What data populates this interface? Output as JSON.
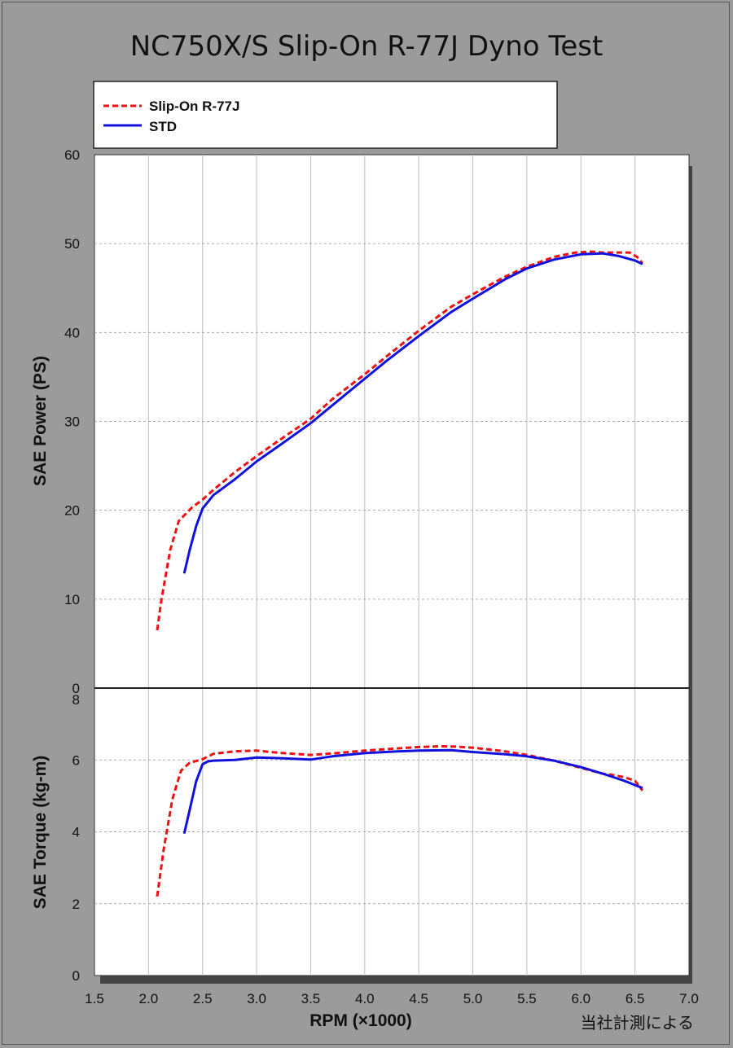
{
  "title": "NC750X/S Slip-On R-77J Dyno Test",
  "note": "当社計測による",
  "colors": {
    "background": "#9b9b9b",
    "plot": "#ffffff",
    "shadow": "#444444",
    "slipon": "#ee1111",
    "std": "#1111dd"
  },
  "legend": [
    {
      "label": "Slip-On R-77J",
      "style": "dashed",
      "color": "#ee1111"
    },
    {
      "label": "STD",
      "style": "solid",
      "color": "#1111dd"
    }
  ],
  "chart_data": [
    {
      "type": "line",
      "ylabel": "SAE Power (PS)",
      "xlim": [
        1.5,
        7.0
      ],
      "ylim": [
        0,
        60
      ],
      "yticks": [
        0,
        10,
        20,
        30,
        40,
        50,
        60
      ],
      "grid": true,
      "series": [
        {
          "name": "Slip-On R-77J",
          "x": [
            2.08,
            2.12,
            2.2,
            2.28,
            2.4,
            2.5,
            2.6,
            2.8,
            3.0,
            3.2,
            3.5,
            3.7,
            4.0,
            4.2,
            4.5,
            4.8,
            5.0,
            5.3,
            5.5,
            5.75,
            5.95,
            6.1,
            6.2,
            6.3,
            6.45,
            6.52,
            6.57
          ],
          "y": [
            6.5,
            10,
            15.5,
            18.8,
            20.3,
            21.2,
            22.3,
            24.3,
            26.1,
            27.8,
            30.3,
            32.5,
            35.3,
            37.3,
            40.2,
            42.9,
            44.3,
            46.3,
            47.4,
            48.5,
            49.0,
            49.1,
            49.0,
            49.0,
            49.0,
            48.5,
            47.8
          ]
        },
        {
          "name": "STD",
          "x": [
            2.33,
            2.38,
            2.44,
            2.5,
            2.6,
            2.8,
            3.0,
            3.2,
            3.5,
            3.7,
            4.0,
            4.2,
            4.5,
            4.8,
            5.0,
            5.3,
            5.5,
            5.75,
            6.0,
            6.2,
            6.35,
            6.5,
            6.57
          ],
          "y": [
            12.9,
            15.5,
            18.2,
            20.2,
            21.7,
            23.5,
            25.5,
            27.2,
            29.8,
            31.8,
            34.8,
            36.8,
            39.6,
            42.3,
            43.8,
            46.0,
            47.2,
            48.2,
            48.8,
            48.9,
            48.6,
            48.1,
            47.7
          ]
        }
      ]
    },
    {
      "type": "line",
      "ylabel": "SAE Torque (kg-m)",
      "xlabel": "RPM (×1000)",
      "xlim": [
        1.5,
        7.0
      ],
      "xticks": [
        "1.5",
        "2.0",
        "2.5",
        "3.0",
        "3.5",
        "4.0",
        "4.5",
        "5.0",
        "5.5",
        "6.0",
        "6.5",
        "7.0"
      ],
      "ylim": [
        0,
        8
      ],
      "yticks": [
        0,
        2,
        4,
        6,
        8
      ],
      "grid": true,
      "series": [
        {
          "name": "Slip-On R-77J",
          "x": [
            2.08,
            2.14,
            2.22,
            2.3,
            2.38,
            2.5,
            2.6,
            2.8,
            3.0,
            3.2,
            3.5,
            3.7,
            4.0,
            4.3,
            4.5,
            4.7,
            4.85,
            5.0,
            5.3,
            5.5,
            5.75,
            6.0,
            6.2,
            6.3,
            6.4,
            6.5,
            6.57
          ],
          "y": [
            2.2,
            3.5,
            4.9,
            5.7,
            5.92,
            6.02,
            6.17,
            6.24,
            6.26,
            6.2,
            6.14,
            6.18,
            6.26,
            6.32,
            6.36,
            6.38,
            6.37,
            6.34,
            6.24,
            6.14,
            5.98,
            5.78,
            5.62,
            5.58,
            5.52,
            5.42,
            5.15
          ]
        },
        {
          "name": "STD",
          "x": [
            2.33,
            2.38,
            2.44,
            2.5,
            2.55,
            2.6,
            2.8,
            3.0,
            3.2,
            3.5,
            3.7,
            4.0,
            4.3,
            4.5,
            4.8,
            5.0,
            5.3,
            5.5,
            5.75,
            6.0,
            6.2,
            6.4,
            6.5,
            6.57
          ],
          "y": [
            3.95,
            4.6,
            5.4,
            5.88,
            5.96,
            5.98,
            6.0,
            6.07,
            6.05,
            6.01,
            6.1,
            6.19,
            6.24,
            6.26,
            6.27,
            6.22,
            6.16,
            6.1,
            5.98,
            5.8,
            5.62,
            5.42,
            5.3,
            5.22
          ]
        }
      ]
    }
  ]
}
